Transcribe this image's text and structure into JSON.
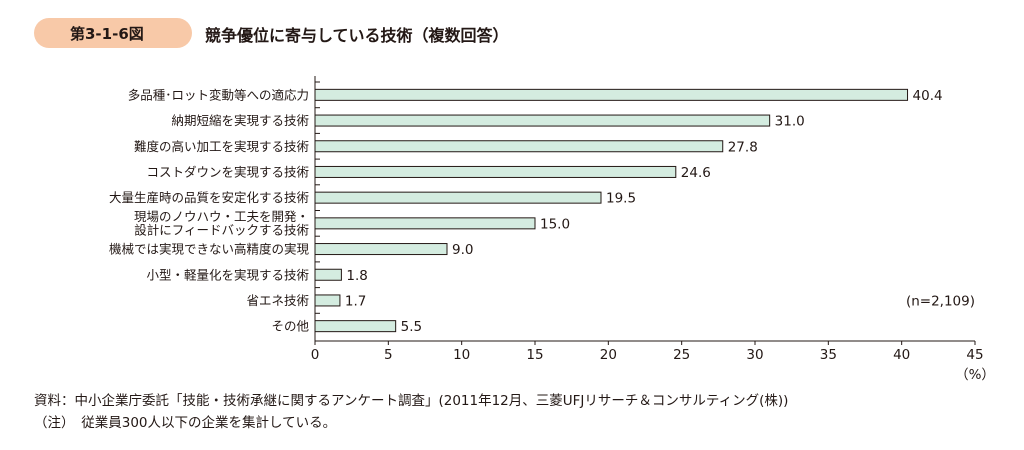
{
  "figure": {
    "number": "第3-1-6図",
    "title": "競争優位に寄与している技術（複数回答）"
  },
  "chart_data": {
    "type": "bar",
    "orientation": "horizontal",
    "categories": [
      [
        "多品種･ロット変動等への適応力"
      ],
      [
        "納期短縮を実現する技術"
      ],
      [
        "難度の高い加工を実現する技術"
      ],
      [
        "コストダウンを実現する技術"
      ],
      [
        "大量生産時の品質を安定化する技術"
      ],
      [
        "現場のノウハウ・工夫を開発・",
        "設計にフィードバックする技術"
      ],
      [
        "機械では実現できない高精度の実現"
      ],
      [
        "小型・軽量化を実現する技術"
      ],
      [
        "省エネ技術"
      ],
      [
        "その他"
      ]
    ],
    "values": [
      40.4,
      31.0,
      27.8,
      24.6,
      19.5,
      15.0,
      9.0,
      1.8,
      1.7,
      5.5
    ],
    "value_labels": [
      "40.4",
      "31.0",
      "27.8",
      "24.6",
      "19.5",
      "15.0",
      "9.0",
      "1.8",
      "1.7",
      "5.5"
    ],
    "xlim": [
      0,
      45
    ],
    "xticks": [
      0,
      5,
      10,
      15,
      20,
      25,
      30,
      35,
      40,
      45
    ],
    "unit_label": "（%）",
    "annotation": "(n=2,109)",
    "bar_color": "#d4ece0",
    "bar_edge": "#231815",
    "grid": false
  },
  "notes": [
    "資料：中小企業庁委託「技能・技術承継に関するアンケート調査」(2011年12月、三菱UFJリサーチ＆コンサルティング(株))",
    "（注）　従業員300人以下の企業を集計している。"
  ]
}
